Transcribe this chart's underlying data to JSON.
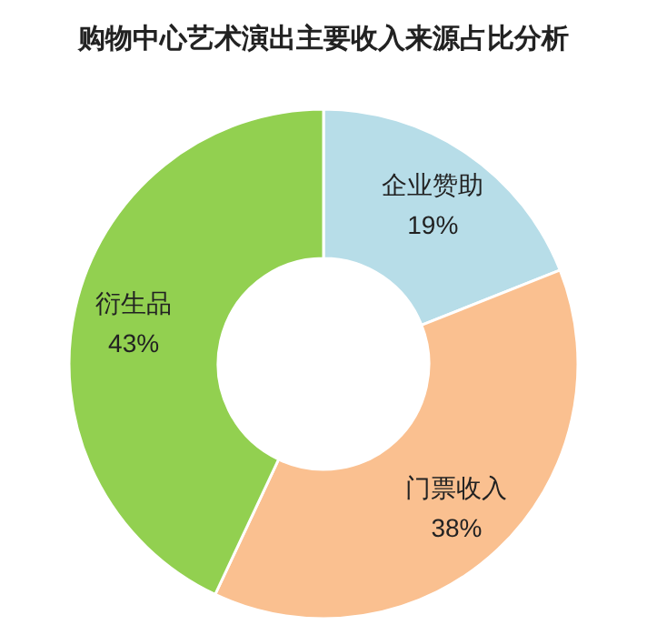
{
  "chart_data": {
    "type": "donut",
    "title": "购物中心艺术演出主要收入来源占比分析",
    "categories": [
      "企业赞助",
      "门票收入",
      "衍生品"
    ],
    "values": [
      19,
      38,
      43
    ],
    "colors": [
      "#b7dde8",
      "#fac090",
      "#92d050"
    ],
    "value_labels": [
      "19%",
      "38%",
      "43%"
    ]
  }
}
